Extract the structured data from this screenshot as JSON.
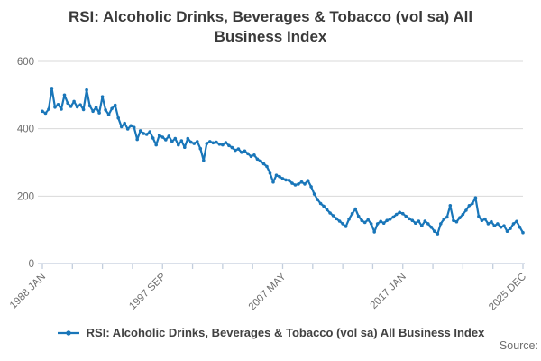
{
  "header": {
    "title_lines": [
      "RSI: Alcoholic Drinks, Beverages & Tobacco (vol sa) All",
      "Business Index"
    ]
  },
  "legend": {
    "label": "RSI: Alcoholic Drinks, Beverages & Tobacco (vol sa) All Business Index"
  },
  "footer": {
    "source_label": "Source:"
  },
  "colors": {
    "series": "#1976b9",
    "grid": "#d9d9d9",
    "axis": "#c3cedd",
    "muted_text": "#6e6e6e",
    "title_text": "#3a3a3a"
  },
  "chart_data": {
    "type": "line",
    "title": "RSI: Alcoholic Drinks, Beverages & Tobacco (vol sa) All Business Index",
    "series": [
      {
        "name": "RSI: Alcoholic Drinks, Beverages & Tobacco (vol sa) All Business Index",
        "x_start_year": 1988.0,
        "x_step_years": 0.25,
        "values": [
          452,
          446,
          458,
          520,
          464,
          472,
          458,
          500,
          476,
          466,
          481,
          465,
          471,
          457,
          515,
          468,
          452,
          463,
          447,
          495,
          456,
          442,
          460,
          470,
          432,
          406,
          416,
          399,
          409,
          404,
          368,
          394,
          386,
          383,
          391,
          372,
          352,
          381,
          375,
          367,
          378,
          362,
          371,
          352,
          364,
          345,
          371,
          360,
          356,
          362,
          341,
          306,
          356,
          362,
          358,
          360,
          354,
          352,
          359,
          350,
          344,
          336,
          340,
          330,
          334,
          326,
          318,
          322,
          310,
          304,
          296,
          288,
          268,
          242,
          262,
          258,
          252,
          248,
          247,
          238,
          233,
          236,
          242,
          236,
          246,
          228,
          206,
          190,
          178,
          170,
          160,
          150,
          142,
          133,
          126,
          118,
          110,
          132,
          148,
          162,
          140,
          128,
          122,
          130,
          118,
          94,
          118,
          125,
          120,
          128,
          132,
          138,
          146,
          152,
          148,
          140,
          133,
          128,
          120,
          126,
          112,
          126,
          118,
          108,
          96,
          88,
          118,
          132,
          138,
          172,
          128,
          124,
          136,
          146,
          158,
          172,
          178,
          195,
          140,
          128,
          132,
          118,
          124,
          112,
          118,
          108,
          112,
          96,
          104,
          118,
          125,
          108,
          92
        ]
      }
    ],
    "xlabel": "",
    "ylabel": "",
    "x_tick_labels": [
      "1988 JAN",
      "1997 SEP",
      "2007 MAY",
      "2017 JAN",
      "2025 DEC"
    ],
    "x_minor_ticks_per_interval": 3,
    "y_ticks": [
      {
        "value": 0,
        "label": "0"
      },
      {
        "value": 200,
        "label": "200"
      },
      {
        "value": 400,
        "label": "400"
      },
      {
        "value": 600,
        "label": "600"
      }
    ],
    "ylim": [
      0,
      600
    ],
    "grid": "horizontal",
    "legend_position": "bottom",
    "markers": true
  }
}
